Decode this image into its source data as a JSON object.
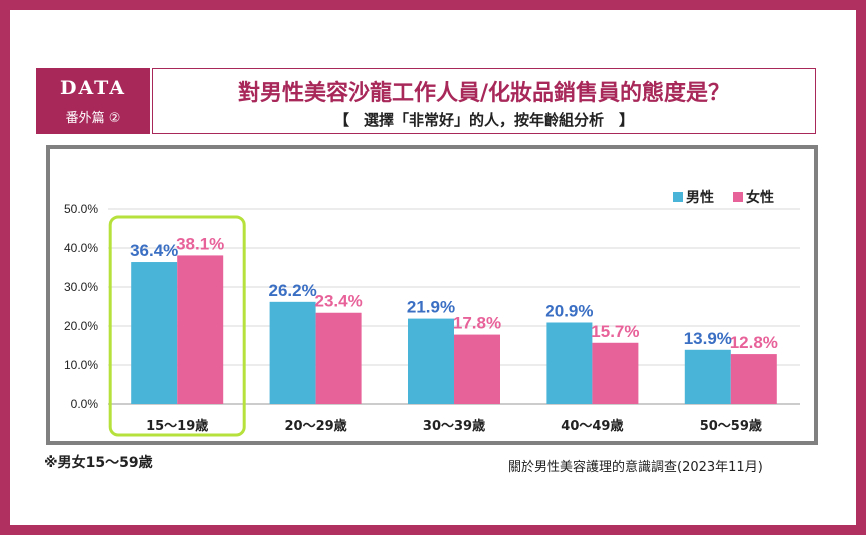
{
  "badge": {
    "line1": "DATA",
    "line2": "番外篇 ②"
  },
  "title": "對男性美容沙龍工作人員/化妝品銷售員的態度是？",
  "subtitle": "【　選擇「非常好」的人，按年齡組分析　】",
  "note": "※男女15～59歳",
  "source": "關於男性美容護理的意識調查(2023年11月)",
  "colors": {
    "male": "#4ab4d8",
    "female": "#e8629a",
    "highlight": "#b6e03c"
  },
  "chart_data": {
    "type": "bar",
    "categories": [
      "15～19歳",
      "20～29歳",
      "30～39歳",
      "40～49歳",
      "50～59歳"
    ],
    "series": [
      {
        "name": "男性",
        "values": [
          36.4,
          26.2,
          21.9,
          20.9,
          13.9
        ],
        "labels": [
          "36.4%",
          "26.2%",
          "21.9%",
          "20.9%",
          "13.9%"
        ]
      },
      {
        "name": "女性",
        "values": [
          38.1,
          23.4,
          17.8,
          15.7,
          12.8
        ],
        "labels": [
          "38.1%",
          "23.4%",
          "17.8%",
          "15.7%",
          "12.8%"
        ]
      }
    ],
    "yticks": [
      "0.0%",
      "10.0%",
      "20.0%",
      "30.0%",
      "40.0%",
      "50.0%"
    ],
    "ylim": [
      0,
      50
    ],
    "legend": "top-right",
    "highlighted_category": "15～19歳"
  }
}
